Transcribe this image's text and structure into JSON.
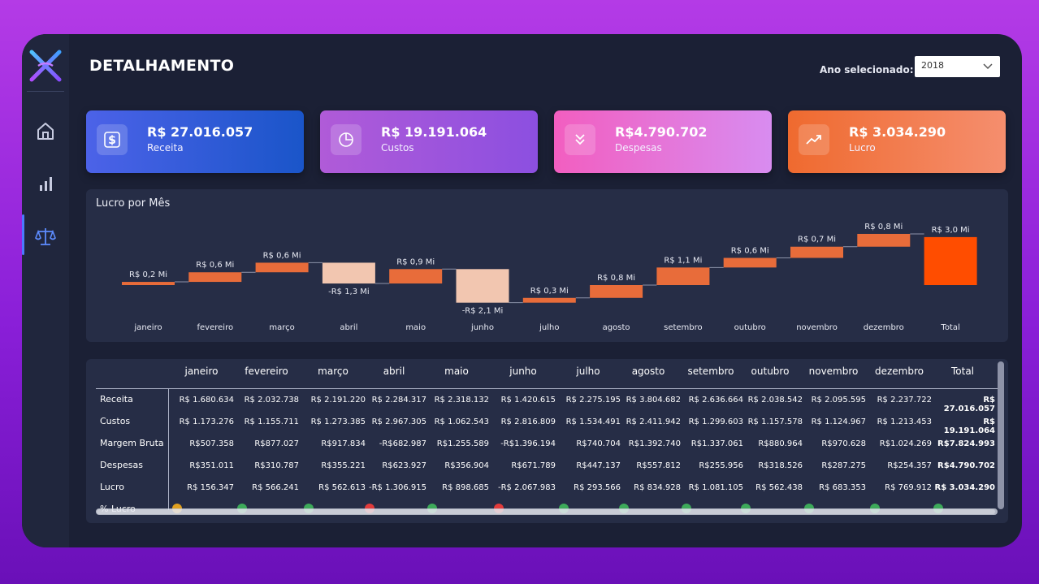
{
  "page": {
    "title": "DETALHAMENTO",
    "year_label": "Ano selecionado:",
    "year_value": "2018"
  },
  "sidebar": {
    "items": [
      {
        "icon": "home-icon",
        "active": false
      },
      {
        "icon": "bar-chart-icon",
        "active": false
      },
      {
        "icon": "scale-icon",
        "active": true
      }
    ]
  },
  "kpis": [
    {
      "value": "R$ 27.016.057",
      "label": "Receita",
      "icon": "dollar-icon"
    },
    {
      "value": "R$ 19.191.064",
      "label": "Custos",
      "icon": "pie-chart-icon"
    },
    {
      "value": "R$4.790.702",
      "label": "Despesas",
      "icon": "double-chevron-down-icon"
    },
    {
      "value": "R$ 3.034.290",
      "label": "Lucro",
      "icon": "trend-up-icon"
    }
  ],
  "chart_data": {
    "type": "bar",
    "subtype": "waterfall",
    "title": "Lucro por Mês",
    "categories": [
      "janeiro",
      "fevereiro",
      "março",
      "abril",
      "maio",
      "junho",
      "julho",
      "agosto",
      "setembro",
      "outubro",
      "novembro",
      "dezembro",
      "Total"
    ],
    "values": [
      0.2,
      0.6,
      0.6,
      -1.3,
      0.9,
      -2.1,
      0.3,
      0.8,
      1.1,
      0.6,
      0.7,
      0.8,
      3.0
    ],
    "labels": [
      "R$ 0,2 Mi",
      "R$ 0,6 Mi",
      "R$ 0,6 Mi",
      "-R$ 1,3 Mi",
      "R$ 0,9 Mi",
      "-R$ 2,1 Mi",
      "R$ 0,3 Mi",
      "R$ 0,8 Mi",
      "R$ 1,1 Mi",
      "R$ 0,6 Mi",
      "R$ 0,7 Mi",
      "R$ 0,8 Mi",
      "R$ 3,0 Mi"
    ],
    "colors": {
      "increase": "#e86c3a",
      "decrease": "#f2c6b0",
      "total": "#ff4d00"
    }
  },
  "table": {
    "columns": [
      "janeiro",
      "fevereiro",
      "março",
      "abril",
      "maio",
      "junho",
      "julho",
      "agosto",
      "setembro",
      "outubro",
      "novembro",
      "dezembro",
      "Total"
    ],
    "rows": [
      {
        "label": "Receita",
        "values": [
          "R$ 1.680.634",
          "R$ 2.032.738",
          "R$ 2.191.220",
          "R$ 2.284.317",
          "R$ 2.318.132",
          "R$ 1.420.615",
          "R$ 2.275.195",
          "R$ 3.804.682",
          "R$ 2.636.664",
          "R$ 2.038.542",
          "R$ 2.095.595",
          "R$ 2.237.722",
          "R$ 27.016.057"
        ]
      },
      {
        "label": "Custos",
        "values": [
          "R$ 1.173.276",
          "R$ 1.155.711",
          "R$ 1.273.385",
          "R$ 2.967.305",
          "R$ 1.062.543",
          "R$ 2.816.809",
          "R$ 1.534.491",
          "R$ 2.411.942",
          "R$ 1.299.603",
          "R$ 1.157.578",
          "R$ 1.124.967",
          "R$ 1.213.453",
          "R$ 19.191.064"
        ]
      },
      {
        "label": "Margem Bruta",
        "values": [
          "R$507.358",
          "R$877.027",
          "R$917.834",
          "-R$682.987",
          "R$1.255.589",
          "-R$1.396.194",
          "R$740.704",
          "R$1.392.740",
          "R$1.337.061",
          "R$880.964",
          "R$970.628",
          "R$1.024.269",
          "R$7.824.993"
        ]
      },
      {
        "label": "Despesas",
        "values": [
          "R$351.011",
          "R$310.787",
          "R$355.221",
          "R$623.927",
          "R$356.904",
          "R$671.789",
          "R$447.137",
          "R$557.812",
          "R$255.956",
          "R$318.526",
          "R$287.275",
          "R$254.357",
          "R$4.790.702"
        ]
      },
      {
        "label": "Lucro",
        "values": [
          "R$ 156.347",
          "R$ 566.241",
          "R$ 562.613",
          "-R$ 1.306.915",
          "R$ 898.685",
          "-R$ 2.067.983",
          "R$ 293.566",
          "R$ 834.928",
          "R$ 1.081.105",
          "R$ 562.438",
          "R$ 683.353",
          "R$ 769.912",
          "R$ 3.034.290"
        ]
      }
    ],
    "partial_row": {
      "label": "% Lucro",
      "status_colors": [
        "#e0a020",
        "#3daa5a",
        "#3daa5a",
        "#e23b3b",
        "#3daa5a",
        "#e23b3b",
        "#3daa5a",
        "#3daa5a",
        "#3daa5a",
        "#3daa5a",
        "#3daa5a",
        "#3daa5a",
        "#3daa5a"
      ]
    }
  }
}
